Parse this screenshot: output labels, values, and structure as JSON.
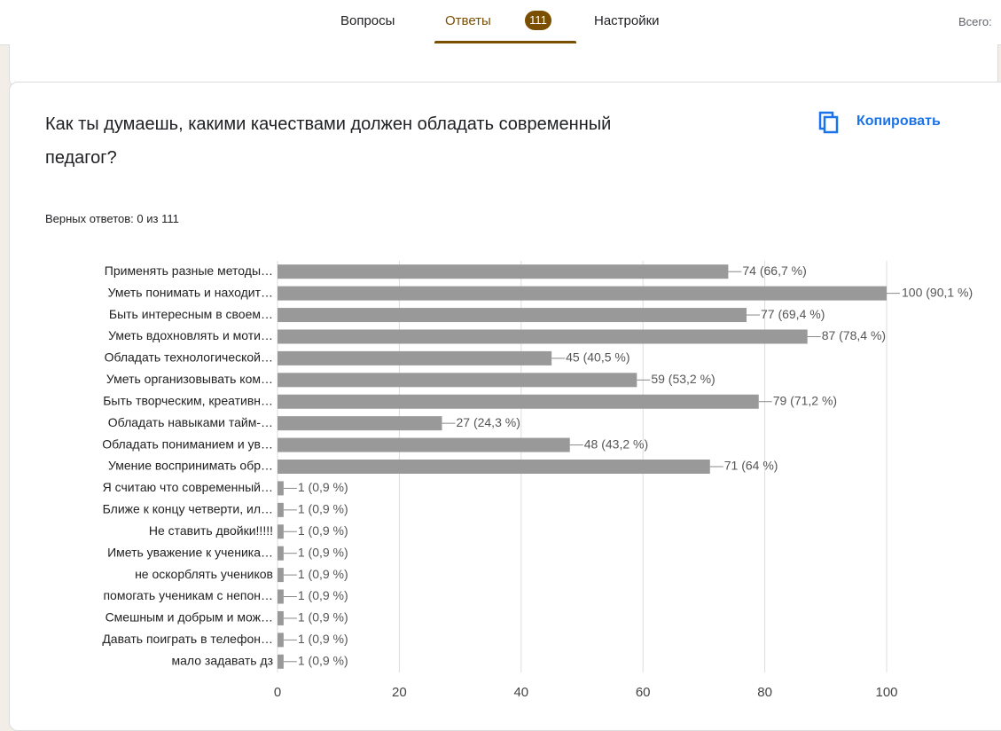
{
  "header": {
    "tabs": [
      "Вопросы",
      "Ответы",
      "Настройки"
    ],
    "badge": "111",
    "total": "Всего:"
  },
  "card": {
    "title_lines": [
      "Как ты думаешь, какими качествами должен обладать современный",
      "педагог?"
    ],
    "copy": "Копировать",
    "correct": "Верных ответов: 0 из 111"
  },
  "chart_data": {
    "type": "hbar",
    "color": "#999999",
    "categories": [
      "Применять разные методы…",
      "Уметь понимать и находит…",
      "Быть интересным в своем…",
      "Уметь вдохновлять и моти…",
      "Обладать технологической…",
      "Уметь организовывать ком…",
      "Быть творческим, креативн…",
      "Обладать навыками тайм-…",
      "Обладать пониманием и ув…",
      "Умение воспринимать обр…",
      "Я считаю что современный…",
      "Ближе к концу четверти, ил…",
      "Не ставить двойки!!!!!",
      "Иметь уважение к ученика…",
      "не оскорблять учеников",
      "помогать ученикам с непон…",
      "Смешным и добрым и мож…",
      "Давать поиграть в телефон…",
      "мало задавать дз"
    ],
    "values": [
      74,
      100,
      77,
      87,
      45,
      59,
      79,
      27,
      48,
      71,
      1,
      1,
      1,
      1,
      1,
      1,
      1,
      1,
      1
    ],
    "value_labels": [
      "74 (66,7 %)",
      "100 (90,1 %)",
      "77 (69,4 %)",
      "87 (78,4 %)",
      "45 (40,5 %)",
      "59 (53,2 %)",
      "79 (71,2 %)",
      "27 (24,3 %)",
      "48 (43,2 %)",
      "71 (64 %)",
      "1 (0,9 %)",
      "1 (0,9 %)",
      "1 (0,9 %)",
      "1 (0,9 %)",
      "1 (0,9 %)",
      "1 (0,9 %)",
      "1 (0,9 %)",
      "1 (0,9 %)",
      "1 (0,9 %)"
    ],
    "xlim": [
      0,
      100
    ],
    "xticks": [
      0,
      20,
      40,
      60,
      80,
      100
    ],
    "grid": true
  }
}
